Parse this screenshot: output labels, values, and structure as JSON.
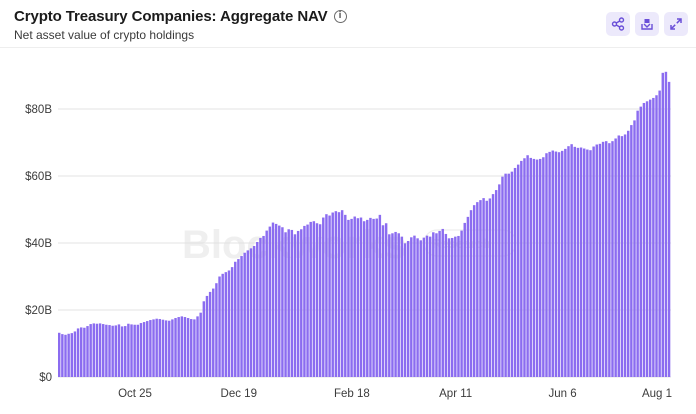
{
  "header": {
    "title": "Crypto Treasury Companies: Aggregate NAV",
    "subtitle": "Net asset value of crypto holdings",
    "info_icon": "info-icon"
  },
  "actions": [
    {
      "name": "share-button",
      "icon": "share-icon"
    },
    {
      "name": "download-button",
      "icon": "download-icon"
    },
    {
      "name": "expand-button",
      "icon": "expand-icon"
    }
  ],
  "watermark": {
    "brand": "Blockworks",
    "sub": "Research"
  },
  "colors": {
    "bar": "#8b6cf0",
    "bar_stroke": "#7a5ae8",
    "grid": "#e3e3e3",
    "accent_bg": "#ece9fb",
    "accent_icon": "#6a4fd8"
  },
  "chart_data": {
    "type": "bar",
    "title": "Crypto Treasury Companies: Aggregate NAV",
    "subtitle": "Net asset value of crypto holdings",
    "xlabel": "",
    "ylabel": "",
    "ylim": [
      0,
      100
    ],
    "y_ticks": [
      "$0",
      "$20B",
      "$40B",
      "$60B",
      "$80B"
    ],
    "y_tick_values": [
      0,
      20,
      40,
      60,
      80
    ],
    "x_ticks": [
      {
        "label": "Oct 25",
        "index": 24
      },
      {
        "label": "Dec 19",
        "index": 57
      },
      {
        "label": "Feb 18",
        "index": 93
      },
      {
        "label": "Apr 11",
        "index": 126
      },
      {
        "label": "Jun 6",
        "index": 160
      },
      {
        "label": "Aug 1",
        "index": 195
      }
    ],
    "grid": true,
    "unit": "billion USD",
    "values": [
      13.2,
      12.8,
      12.6,
      12.9,
      13.1,
      13.6,
      14.5,
      14.8,
      14.7,
      15.2,
      15.8,
      16,
      15.9,
      16,
      15.8,
      15.6,
      15.5,
      15.3,
      15.4,
      15.7,
      15.1,
      15.2,
      15.9,
      15.7,
      15.6,
      15.6,
      16.1,
      16.4,
      16.7,
      17,
      17.2,
      17.4,
      17.3,
      17.1,
      16.9,
      16.8,
      17.2,
      17.6,
      17.9,
      18.1,
      17.9,
      17.6,
      17.3,
      17.2,
      18.1,
      19.2,
      22.6,
      24.2,
      25.4,
      26.4,
      28,
      30,
      30.8,
      31.3,
      31.8,
      32.8,
      34.4,
      35.2,
      36.1,
      37.1,
      37.8,
      38.4,
      39.1,
      40.3,
      41.5,
      42.1,
      43.7,
      44.9,
      46.1,
      45.7,
      45.2,
      44.7,
      43.2,
      44.1,
      43.9,
      42.6,
      43.6,
      44.1,
      45.1,
      45.5,
      46.3,
      46.5,
      45.9,
      45.6,
      47.6,
      48.6,
      48.2,
      49.1,
      49.5,
      49.2,
      49.8,
      48.4,
      46.9,
      47.2,
      47.9,
      47.4,
      47.6,
      46.5,
      46.9,
      47.5,
      47.2,
      47.3,
      48.4,
      45.3,
      45.9,
      42.6,
      42.9,
      43.3,
      42.9,
      41.9,
      39.9,
      40.6,
      41.7,
      42.2,
      41.4,
      40.8,
      41.6,
      42.2,
      41.9,
      43.2,
      42.9,
      43.6,
      44.2,
      42.7,
      41.4,
      41.5,
      41.9,
      42.1,
      43.7,
      46,
      47.8,
      49.8,
      51.3,
      52.2,
      52.8,
      53.4,
      52.6,
      53.3,
      54.6,
      55.8,
      57.5,
      59.8,
      60.7,
      60.7,
      61.3,
      62.4,
      63.4,
      64.5,
      65.3,
      66.2,
      65.4,
      65.1,
      64.9,
      65.1,
      65.6,
      66.8,
      67.2,
      67.6,
      67.3,
      67.1,
      67.5,
      68.1,
      68.9,
      69.5,
      68.7,
      68.4,
      68.5,
      68.2,
      67.9,
      67.7,
      68.8,
      69.4,
      69.6,
      70.2,
      70.4,
      69.8,
      70.4,
      71.2,
      72.1,
      71.9,
      72.4,
      73.5,
      75.2,
      76.6,
      79.5,
      80.7,
      81.8,
      82.3,
      82.8,
      83.3,
      84.1,
      85.5,
      90.8,
      91.1,
      88.1
    ]
  }
}
